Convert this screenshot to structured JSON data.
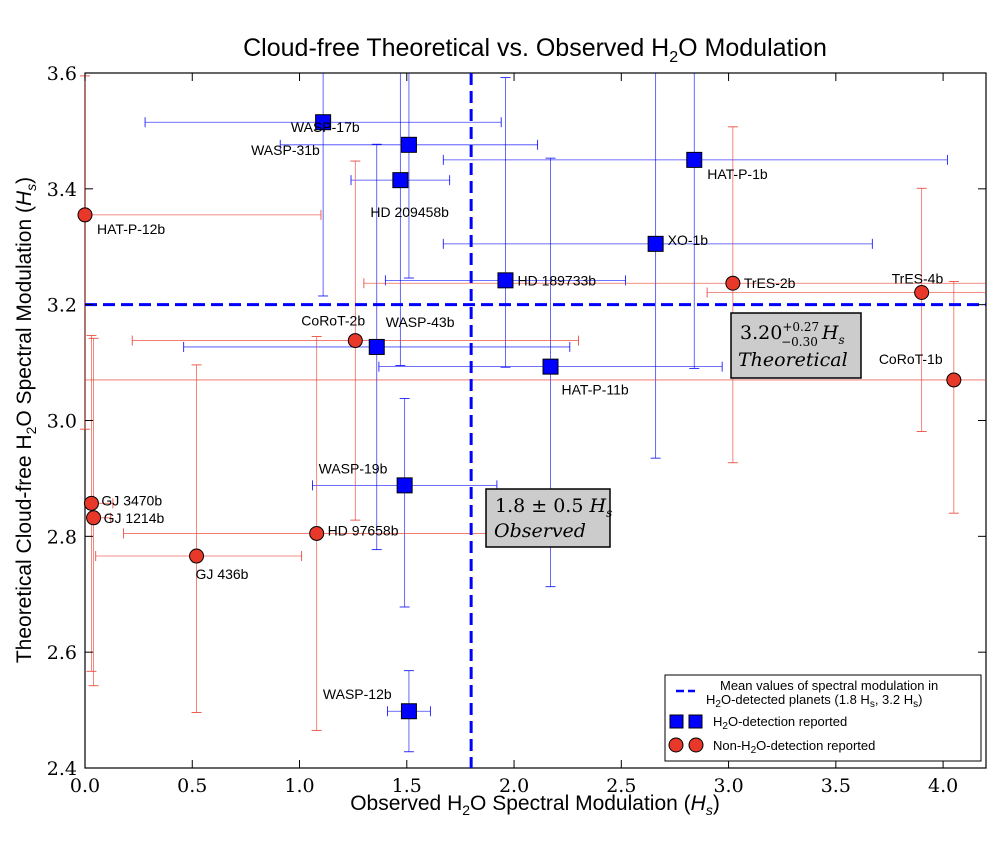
{
  "chart_data": {
    "type": "scatter",
    "title": "Cloud-free Theoretical vs. Observed H₂O Modulation",
    "xlabel": "Observed H₂O Spectral Modulation (Hₛ)",
    "ylabel": "Theoretical Cloud-free H₂O Spectral Modulation (Hₛ)",
    "xlim": [
      0.0,
      4.2
    ],
    "ylim": [
      2.4,
      3.6
    ],
    "xticks": [
      "0.0",
      "0.5",
      "1.0",
      "1.5",
      "2.0",
      "2.5",
      "3.0",
      "3.5",
      "4.0"
    ],
    "yticks": [
      "2.4",
      "2.6",
      "2.8",
      "3.0",
      "3.2",
      "3.4",
      "3.6"
    ],
    "grid": false,
    "legend_position": "bottom-right",
    "legend": [
      "Mean values of spectral modulation in H₂O-detected planets (1.8 Hₛ, 3.2 Hₛ)",
      "H₂O-detection reported",
      "Non-H₂O-detection reported"
    ],
    "mean_lines": {
      "x": 1.8,
      "y": 3.2
    },
    "annotations": [
      {
        "text": "3.20 (+0.27/−0.30) Hₛ",
        "sub": "Theoretical"
      },
      {
        "text": "1.8 ± 0.5 Hₛ",
        "sub": "Observed"
      }
    ],
    "colors": {
      "detected": "#0000ff",
      "non_detected": "#e8382a",
      "mean_line": "#0000ff"
    },
    "series": [
      {
        "name": "H₂O-detection reported",
        "marker": "square",
        "points": [
          {
            "label": "WASP-17b",
            "x": 1.51,
            "y": 3.476,
            "xerr": [
              0.6,
              0.6
            ],
            "yerr": [
              0.23,
              0.26
            ]
          },
          {
            "label": "WASP-31b",
            "x": 1.11,
            "y": 3.515,
            "xerr": [
              0.83,
              0.83
            ],
            "yerr": [
              0.3,
              0.3
            ]
          },
          {
            "label": "HAT-P-1b",
            "x": 2.84,
            "y": 3.45,
            "xerr": [
              1.17,
              1.18
            ],
            "yerr": [
              0.36,
              0.36
            ]
          },
          {
            "label": "HD 209458b",
            "x": 1.47,
            "y": 3.415,
            "xerr": [
              0.23,
              0.23
            ],
            "yerr": [
              0.32,
              0.32
            ]
          },
          {
            "label": "XO-1b",
            "x": 2.66,
            "y": 3.305,
            "xerr": [
              0.99,
              1.01
            ],
            "yerr": [
              0.37,
              0.37
            ]
          },
          {
            "label": "HD 189733b",
            "x": 1.96,
            "y": 3.242,
            "xerr": [
              0.56,
              0.56
            ],
            "yerr": [
              0.15,
              0.35
            ]
          },
          {
            "label": "WASP-43b",
            "x": 1.36,
            "y": 3.127,
            "xerr": [
              0.9,
              0.9
            ],
            "yerr": [
              0.35,
              0.35
            ]
          },
          {
            "label": "HAT-P-11b",
            "x": 2.17,
            "y": 3.093,
            "xerr": [
              0.8,
              0.8
            ],
            "yerr": [
              0.38,
              0.36
            ]
          },
          {
            "label": "WASP-19b",
            "x": 1.49,
            "y": 2.888,
            "xerr": [
              0.43,
              0.43
            ],
            "yerr": [
              0.21,
              0.15
            ]
          },
          {
            "label": "WASP-12b",
            "x": 1.51,
            "y": 2.498,
            "xerr": [
              0.1,
              0.1
            ],
            "yerr": [
              0.07,
              0.07
            ]
          }
        ]
      },
      {
        "name": "Non-H₂O-detection reported",
        "marker": "circle",
        "points": [
          {
            "label": "HAT-P-12b",
            "x": 0.0,
            "y": 3.355,
            "xerr": [
              0.0,
              1.1
            ],
            "yerr": [
              0.37,
              0.24
            ]
          },
          {
            "label": "TrES-2b",
            "x": 3.02,
            "y": 3.237,
            "xerr": [
              1.72,
              1.72
            ],
            "yerr": [
              0.31,
              0.27
            ]
          },
          {
            "label": "TrES-4b",
            "x": 3.9,
            "y": 3.221,
            "xerr": [
              1.0,
              1.0
            ],
            "yerr": [
              0.24,
              0.18
            ]
          },
          {
            "label": "CoRoT-2b",
            "x": 1.26,
            "y": 3.138,
            "xerr": [
              1.04,
              1.04
            ],
            "yerr": [
              0.31,
              0.31
            ]
          },
          {
            "label": "CoRoT-1b",
            "x": 4.05,
            "y": 3.07,
            "xerr": [
              4.05,
              4.05
            ],
            "yerr": [
              0.23,
              0.17
            ]
          },
          {
            "label": "GJ 3470b",
            "x": 0.03,
            "y": 2.857,
            "xerr": [
              0.03,
              0.1
            ],
            "yerr": [
              0.29,
              0.29
            ]
          },
          {
            "label": "GJ 1214b",
            "x": 0.04,
            "y": 2.832,
            "xerr": [
              0.04,
              0.08
            ],
            "yerr": [
              0.29,
              0.31
            ]
          },
          {
            "label": "HD 97658b",
            "x": 1.08,
            "y": 2.805,
            "xerr": [
              0.9,
              0.9
            ],
            "yerr": [
              0.34,
              0.34
            ]
          },
          {
            "label": "GJ 436b",
            "x": 0.52,
            "y": 2.766,
            "xerr": [
              0.47,
              0.49
            ],
            "yerr": [
              0.27,
              0.33
            ]
          }
        ]
      }
    ]
  }
}
